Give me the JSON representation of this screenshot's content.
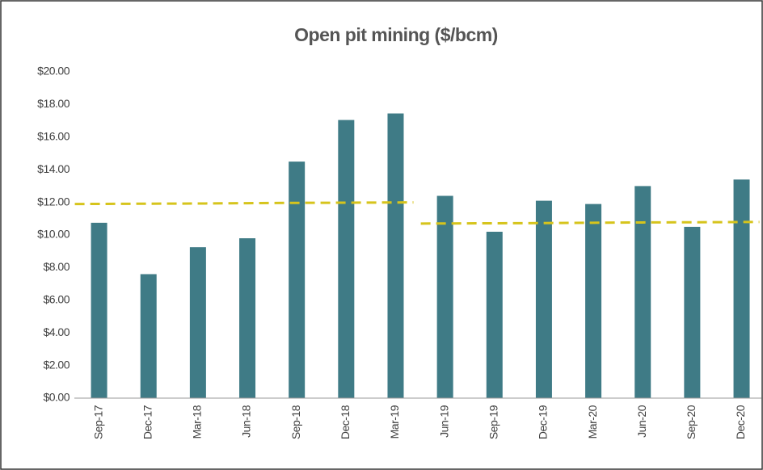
{
  "chart_data": {
    "type": "bar",
    "title": "Open pit mining ($/bcm)",
    "categories": [
      "Sep-17",
      "Dec-17",
      "Mar-18",
      "Jun-18",
      "Sep-18",
      "Dec-18",
      "Mar-19",
      "Jun-19",
      "Sep-19",
      "Dec-19",
      "Mar-20",
      "Jun-20",
      "Sep-20",
      "Dec-20"
    ],
    "values": [
      10.75,
      7.6,
      9.25,
      9.8,
      14.5,
      17.05,
      17.45,
      12.4,
      10.2,
      12.1,
      11.9,
      13.0,
      10.5,
      13.4
    ],
    "color": "#3f7b86",
    "trend_lines": [
      {
        "color": "#d6c41c",
        "values": [
          11.9,
          11.92,
          11.93,
          11.95,
          11.97,
          11.98,
          12.0,
          null,
          null,
          null,
          null,
          null,
          null,
          null
        ]
      },
      {
        "color": "#d6c41c",
        "values": [
          null,
          null,
          null,
          null,
          null,
          null,
          null,
          10.7,
          10.72,
          10.73,
          10.75,
          10.77,
          10.78,
          10.8
        ]
      }
    ],
    "ylim": [
      0,
      20
    ],
    "yticks": [
      {
        "value": 0,
        "label": "$0.00"
      },
      {
        "value": 2,
        "label": "$2.00"
      },
      {
        "value": 4,
        "label": "$4.00"
      },
      {
        "value": 6,
        "label": "$6.00"
      },
      {
        "value": 8,
        "label": "$8.00"
      },
      {
        "value": 10,
        "label": "$10.00"
      },
      {
        "value": 12,
        "label": "$12.00"
      },
      {
        "value": 14,
        "label": "$14.00"
      },
      {
        "value": 16,
        "label": "$16.00"
      },
      {
        "value": 18,
        "label": "$18.00"
      },
      {
        "value": 20,
        "label": "$20.00"
      }
    ],
    "grid": false
  }
}
